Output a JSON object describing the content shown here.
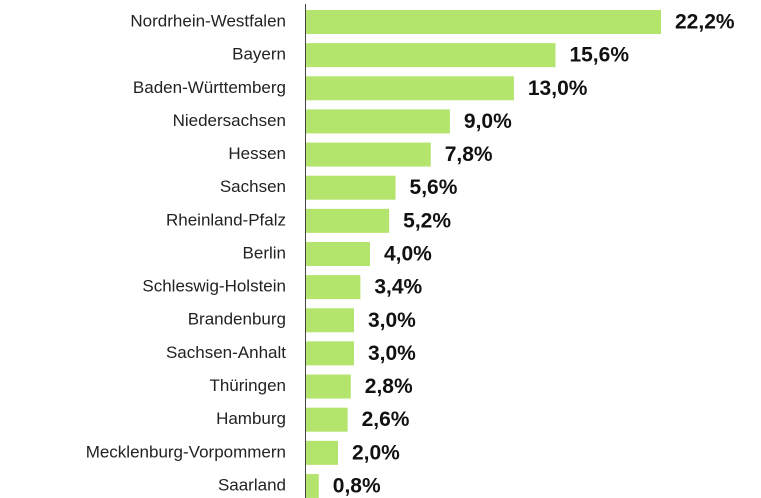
{
  "chart_data": {
    "type": "barh",
    "color": "#b3e46c",
    "categories": [
      "Nordrhein-Westfalen",
      "Bayern",
      "Baden-Württemberg",
      "Niedersachsen",
      "Hessen",
      "Sachsen",
      "Rheinland-Pfalz",
      "Berlin",
      "Schleswig-Holstein",
      "Brandenburg",
      "Sachsen-Anhalt",
      "Thüringen",
      "Hamburg",
      "Mecklenburg-Vorpommern",
      "Saarland"
    ],
    "values": [
      22.2,
      15.6,
      13.0,
      9.0,
      7.8,
      5.6,
      5.2,
      4.0,
      3.4,
      3.0,
      3.0,
      2.8,
      2.6,
      2.0,
      0.8
    ],
    "value_labels": [
      "22,2%",
      "15,6%",
      "13,0%",
      "9,0%",
      "7,8%",
      "5,6%",
      "5,2%",
      "4,0%",
      "3,4%",
      "3,0%",
      "3,0%",
      "2,8%",
      "2,6%",
      "2,0%",
      "0,8%"
    ]
  }
}
